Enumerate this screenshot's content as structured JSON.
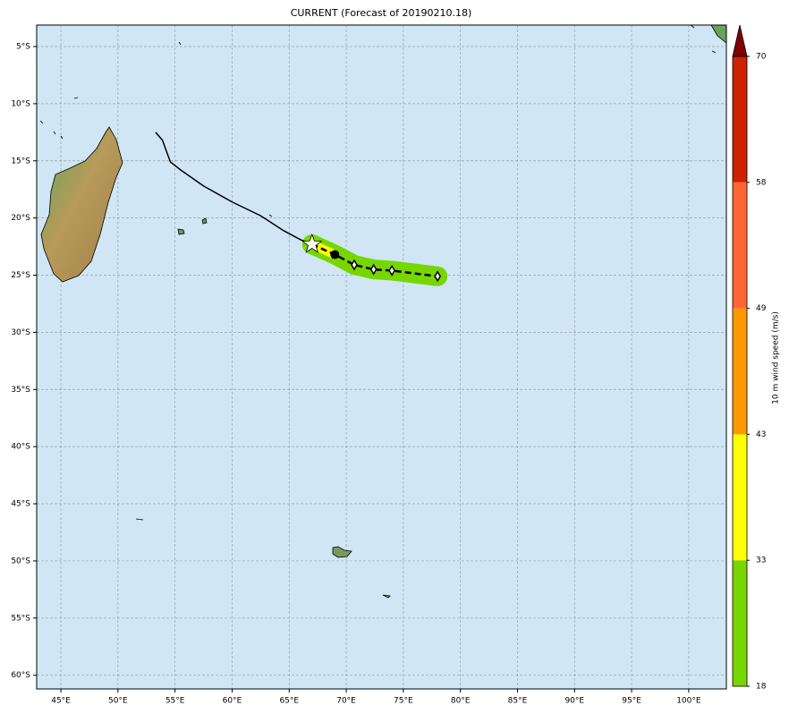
{
  "title": "CURRENT (Forecast of 20190210.18)",
  "map": {
    "xlim": [
      42.88,
      103.3
    ],
    "ylim": [
      -61.2,
      -3.12
    ],
    "xticks": [
      {
        "value": 45,
        "label": "45°E"
      },
      {
        "value": 50,
        "label": "50°E"
      },
      {
        "value": 55,
        "label": "55°E"
      },
      {
        "value": 60,
        "label": "60°E"
      },
      {
        "value": 65,
        "label": "65°E"
      },
      {
        "value": 70,
        "label": "70°E"
      },
      {
        "value": 75,
        "label": "75°E"
      },
      {
        "value": 80,
        "label": "80°E"
      },
      {
        "value": 85,
        "label": "85°E"
      },
      {
        "value": 90,
        "label": "90°E"
      },
      {
        "value": 95,
        "label": "95°E"
      },
      {
        "value": 100,
        "label": "100°E"
      }
    ],
    "yticks": [
      {
        "value": -5,
        "label": "5°S"
      },
      {
        "value": -10,
        "label": "10°S"
      },
      {
        "value": -15,
        "label": "15°S"
      },
      {
        "value": -20,
        "label": "20°S"
      },
      {
        "value": -25,
        "label": "25°S"
      },
      {
        "value": -30,
        "label": "30°S"
      },
      {
        "value": -35,
        "label": "35°S"
      },
      {
        "value": -40,
        "label": "40°S"
      },
      {
        "value": -45,
        "label": "45°S"
      },
      {
        "value": -50,
        "label": "50°S"
      },
      {
        "value": -55,
        "label": "55°S"
      },
      {
        "value": -60,
        "label": "60°S"
      }
    ],
    "grid": true,
    "past_track": {
      "lon": [
        53.3,
        53.9,
        54.3,
        54.6,
        55.5,
        57.5,
        60,
        62.5,
        64.5,
        66,
        67
      ],
      "lat": [
        -12.5,
        -13.2,
        -14.3,
        -15.1,
        -15.8,
        -17.2,
        -18.6,
        -19.8,
        -21.1,
        -21.9,
        -22.3
      ],
      "color": "#000000"
    },
    "forecast_track": {
      "lon": [
        67,
        69,
        70.7,
        72.4,
        74,
        78
      ],
      "lat": [
        -22.3,
        -23.2,
        -24.1,
        -24.5,
        -24.6,
        -25.1
      ],
      "color": "#000000",
      "swath_color": "#77d600",
      "core_color": "#ffff00"
    }
  },
  "colorbar": {
    "label": "10 m wind speed (m/s)",
    "boundaries": [
      18,
      33,
      43,
      49,
      58,
      70
    ],
    "colors": [
      "#77d600",
      "#ffff00",
      "#ff9900",
      "#ff6633",
      "#cc2200"
    ],
    "extend_color": "#800000"
  }
}
